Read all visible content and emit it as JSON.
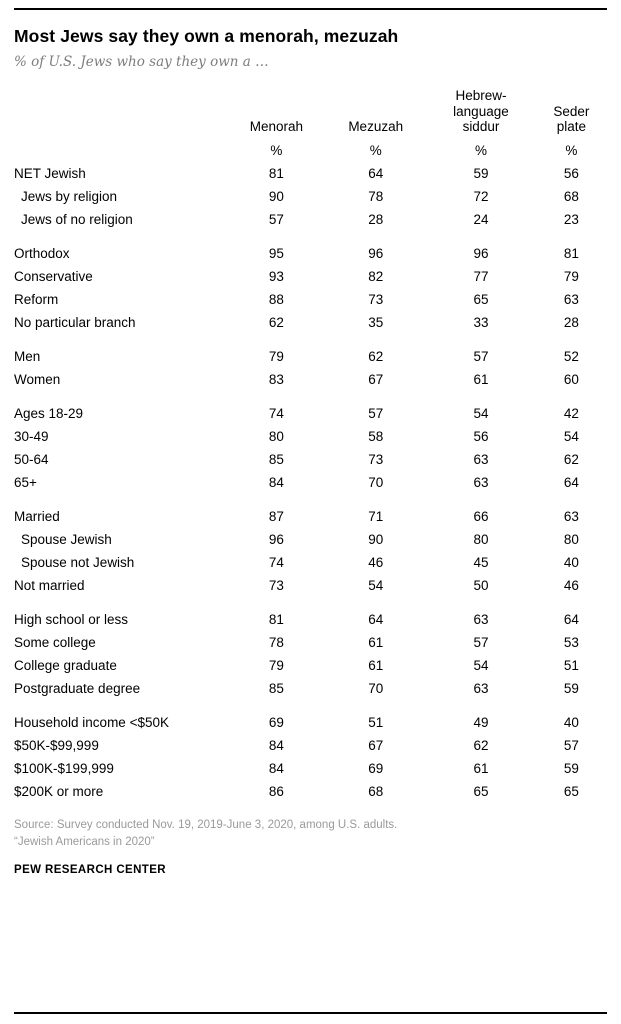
{
  "header": {
    "title": "Most Jews say they own a menorah, mezuzah",
    "subtitle": "% of U.S. Jews who say they own a …"
  },
  "chart_data": {
    "type": "table",
    "title": "Most Jews say they own a menorah, mezuzah",
    "subtitle": "% of U.S. Jews who say they own a …",
    "unit": "%",
    "columns": [
      "Menorah",
      "Mezuzah",
      "Hebrew-\nlanguage\nsiddur",
      "Seder\nplate"
    ],
    "unit_row": [
      "%",
      "%",
      "%",
      "%"
    ],
    "groups": [
      {
        "rows": [
          {
            "label": "NET Jewish",
            "indent": false,
            "values": [
              81,
              64,
              59,
              56
            ]
          },
          {
            "label": "Jews by religion",
            "indent": true,
            "values": [
              90,
              78,
              72,
              68
            ]
          },
          {
            "label": "Jews of no religion",
            "indent": true,
            "values": [
              57,
              28,
              24,
              23
            ]
          }
        ]
      },
      {
        "rows": [
          {
            "label": "Orthodox",
            "indent": false,
            "values": [
              95,
              96,
              96,
              81
            ]
          },
          {
            "label": "Conservative",
            "indent": false,
            "values": [
              93,
              82,
              77,
              79
            ]
          },
          {
            "label": "Reform",
            "indent": false,
            "values": [
              88,
              73,
              65,
              63
            ]
          },
          {
            "label": "No particular branch",
            "indent": false,
            "values": [
              62,
              35,
              33,
              28
            ]
          }
        ]
      },
      {
        "rows": [
          {
            "label": "Men",
            "indent": false,
            "values": [
              79,
              62,
              57,
              52
            ]
          },
          {
            "label": "Women",
            "indent": false,
            "values": [
              83,
              67,
              61,
              60
            ]
          }
        ]
      },
      {
        "rows": [
          {
            "label": "Ages 18-29",
            "indent": false,
            "values": [
              74,
              57,
              54,
              42
            ]
          },
          {
            "label": "30-49",
            "indent": false,
            "values": [
              80,
              58,
              56,
              54
            ]
          },
          {
            "label": "50-64",
            "indent": false,
            "values": [
              85,
              73,
              63,
              62
            ]
          },
          {
            "label": "65+",
            "indent": false,
            "values": [
              84,
              70,
              63,
              64
            ]
          }
        ]
      },
      {
        "rows": [
          {
            "label": "Married",
            "indent": false,
            "values": [
              87,
              71,
              66,
              63
            ]
          },
          {
            "label": "Spouse Jewish",
            "indent": true,
            "values": [
              96,
              90,
              80,
              80
            ]
          },
          {
            "label": "Spouse not Jewish",
            "indent": true,
            "values": [
              74,
              46,
              45,
              40
            ]
          },
          {
            "label": "Not married",
            "indent": false,
            "values": [
              73,
              54,
              50,
              46
            ]
          }
        ]
      },
      {
        "rows": [
          {
            "label": "High school or less",
            "indent": false,
            "values": [
              81,
              64,
              63,
              64
            ]
          },
          {
            "label": "Some college",
            "indent": false,
            "values": [
              78,
              61,
              57,
              53
            ]
          },
          {
            "label": "College graduate",
            "indent": false,
            "values": [
              79,
              61,
              54,
              51
            ]
          },
          {
            "label": "Postgraduate degree",
            "indent": false,
            "values": [
              85,
              70,
              63,
              59
            ]
          }
        ]
      },
      {
        "rows": [
          {
            "label": "Household income <$50K",
            "indent": false,
            "values": [
              69,
              51,
              49,
              40
            ]
          },
          {
            "label": "$50K-$99,999",
            "indent": false,
            "values": [
              84,
              67,
              62,
              57
            ]
          },
          {
            "label": "$100K-$199,999",
            "indent": false,
            "values": [
              84,
              69,
              61,
              59
            ]
          },
          {
            "label": "$200K or more",
            "indent": false,
            "values": [
              86,
              68,
              65,
              65
            ]
          }
        ]
      }
    ]
  },
  "footer": {
    "source_line1": "Source: Survey conducted Nov. 19, 2019-June 3, 2020, among U.S. adults.",
    "source_line2": "“Jewish Americans in 2020”",
    "brand": "PEW RESEARCH CENTER"
  }
}
